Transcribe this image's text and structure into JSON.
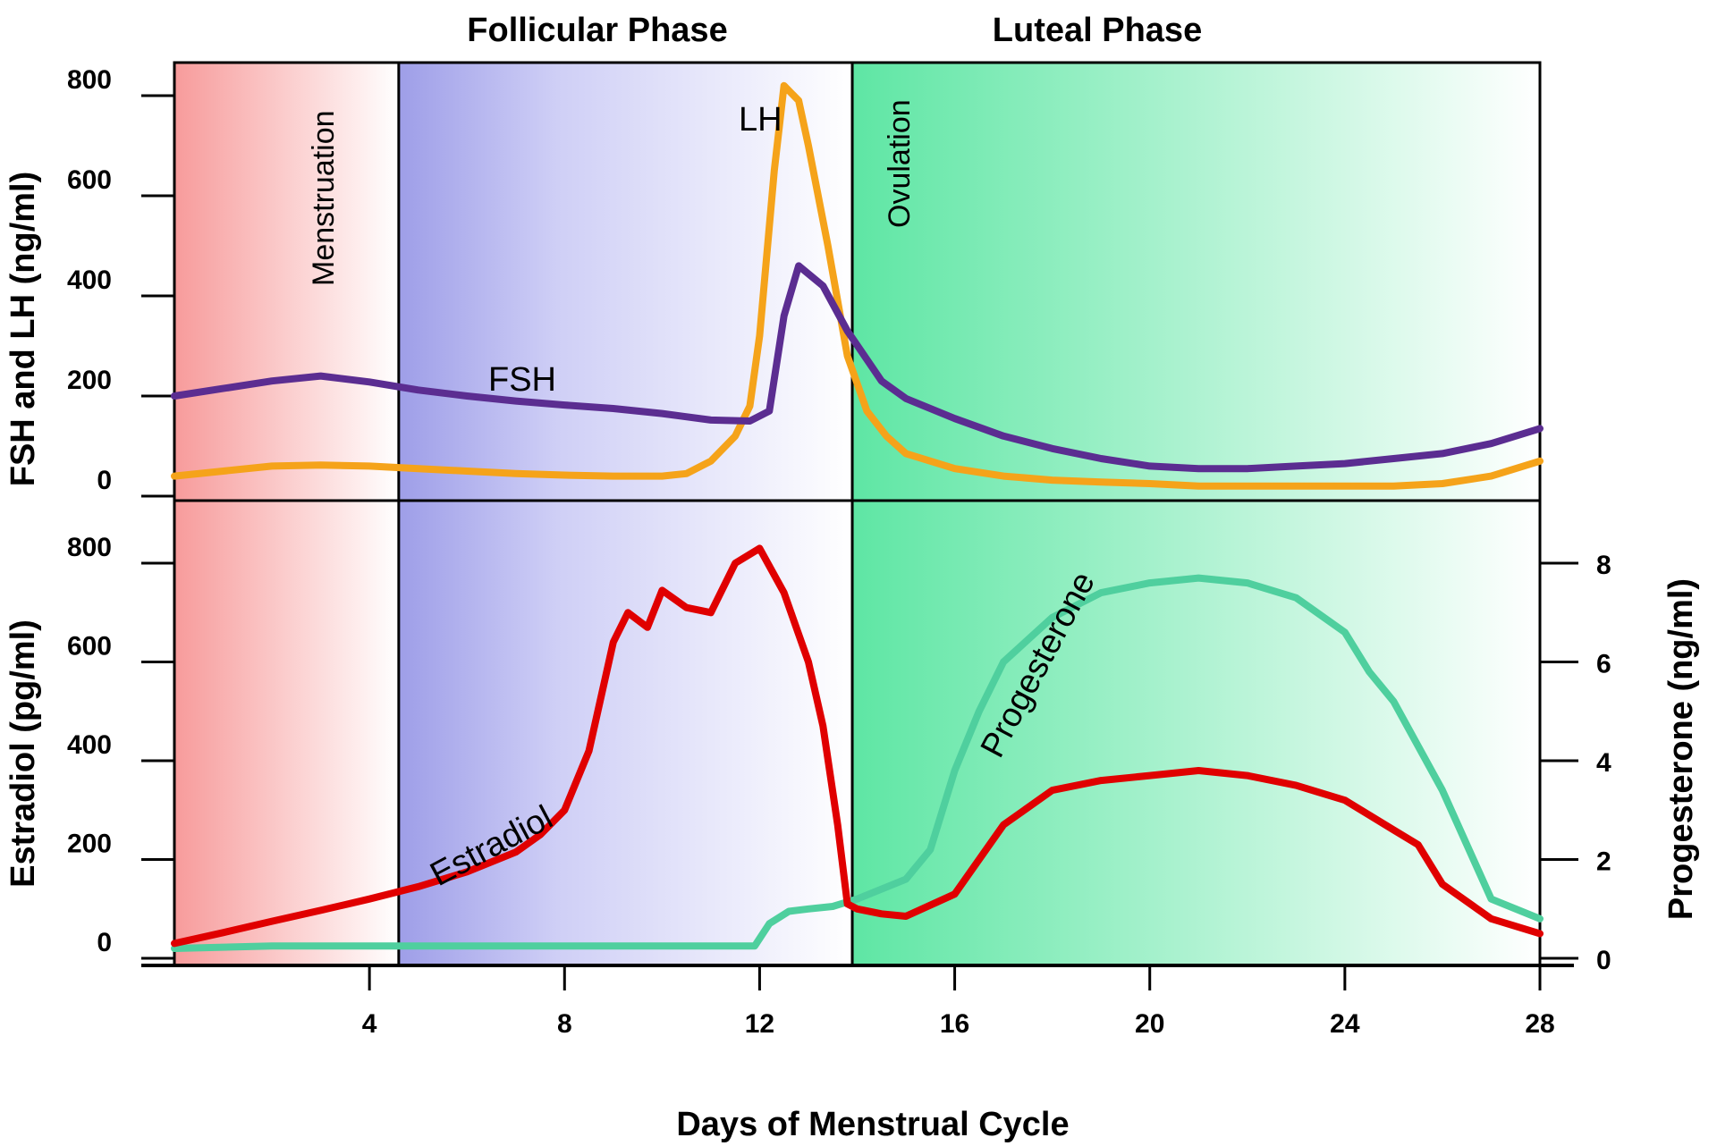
{
  "chart_data": [
    {
      "type": "line",
      "panel": "top",
      "title": "",
      "xlabel": "",
      "ylabel": "FSH and LH (ng/ml)",
      "xlim": [
        0,
        28
      ],
      "ylim": [
        0,
        800
      ],
      "yticks": [
        "0",
        "200",
        "400",
        "600",
        "800"
      ],
      "grid": false,
      "series": [
        {
          "name": "FSH",
          "color": "#5b2d91",
          "x": [
            0,
            1,
            2,
            3,
            4,
            5,
            6,
            7,
            8,
            9,
            10,
            11,
            11.8,
            12.2,
            12.5,
            12.8,
            13.3,
            13.8,
            14.5,
            15,
            16,
            17,
            18,
            19,
            20,
            21,
            22,
            23,
            24,
            25,
            26,
            27,
            28
          ],
          "values": [
            200,
            215,
            230,
            240,
            228,
            212,
            200,
            190,
            182,
            175,
            165,
            152,
            150,
            170,
            360,
            460,
            420,
            330,
            230,
            195,
            155,
            120,
            95,
            75,
            60,
            55,
            55,
            60,
            65,
            75,
            85,
            105,
            135
          ]
        },
        {
          "name": "LH",
          "color": "#f5a31a",
          "x": [
            0,
            1,
            2,
            3,
            4,
            5,
            6,
            7,
            8,
            9,
            10,
            10.5,
            11,
            11.5,
            11.8,
            12,
            12.3,
            12.5,
            12.8,
            13,
            13.4,
            13.8,
            14.2,
            14.6,
            15,
            16,
            17,
            18,
            19,
            20,
            21,
            22,
            23,
            24,
            25,
            26,
            27,
            28
          ],
          "values": [
            40,
            50,
            60,
            62,
            60,
            55,
            50,
            45,
            42,
            40,
            40,
            45,
            70,
            120,
            180,
            320,
            650,
            820,
            790,
            700,
            500,
            280,
            170,
            120,
            85,
            55,
            40,
            32,
            28,
            25,
            20,
            20,
            20,
            20,
            20,
            25,
            40,
            70
          ]
        }
      ]
    },
    {
      "type": "line",
      "panel": "bottom",
      "title": "",
      "xlabel": "Days of Menstrual Cycle",
      "ylabel": "Estradiol (pg/ml)",
      "ylabel_right": "Progesterone (ng/ml)",
      "xlim": [
        0,
        28
      ],
      "ylim": [
        0,
        800
      ],
      "ylim_right": [
        0,
        8
      ],
      "xticks": [
        "4",
        "8",
        "12",
        "16",
        "20",
        "24",
        "28"
      ],
      "yticks": [
        "0",
        "200",
        "400",
        "600",
        "800"
      ],
      "yticks_right": [
        "0",
        "2",
        "4",
        "6",
        "8"
      ],
      "grid": false,
      "series": [
        {
          "name": "Estradiol",
          "axis": "left",
          "color": "#e00000",
          "x": [
            0,
            1,
            2,
            3,
            4,
            5,
            6,
            7,
            7.5,
            8,
            8.5,
            9,
            9.3,
            9.7,
            10,
            10.5,
            11,
            11.5,
            12,
            12.5,
            13,
            13.3,
            13.6,
            13.8,
            14,
            14.5,
            15,
            16,
            17,
            18,
            19,
            20,
            21,
            22,
            23,
            24,
            25,
            25.5,
            26,
            27,
            28
          ],
          "values": [
            30,
            52,
            75,
            97,
            120,
            145,
            175,
            215,
            250,
            300,
            420,
            640,
            700,
            670,
            745,
            710,
            700,
            800,
            830,
            740,
            600,
            470,
            270,
            110,
            100,
            90,
            85,
            130,
            270,
            340,
            360,
            370,
            380,
            370,
            350,
            320,
            260,
            230,
            150,
            80,
            50
          ]
        },
        {
          "name": "Progesterone",
          "axis": "right",
          "color": "#4fcf9e",
          "x": [
            0,
            2,
            4,
            6,
            8,
            10,
            11,
            11.9,
            12.2,
            12.6,
            13,
            13.5,
            14,
            15,
            15.5,
            16,
            16.5,
            17,
            18,
            19,
            20,
            21,
            22,
            23,
            24,
            24.5,
            25,
            26,
            27,
            28
          ],
          "values": [
            0.2,
            0.25,
            0.25,
            0.25,
            0.25,
            0.25,
            0.25,
            0.25,
            0.7,
            0.95,
            1.0,
            1.05,
            1.2,
            1.6,
            2.2,
            3.8,
            5.0,
            6.0,
            6.9,
            7.4,
            7.6,
            7.7,
            7.6,
            7.3,
            6.6,
            5.8,
            5.2,
            3.4,
            1.2,
            0.8
          ]
        }
      ]
    }
  ],
  "annotations": {
    "phase_follicular": "Follicular Phase",
    "phase_luteal": "Luteal Phase",
    "menstruation": "Menstruation",
    "ovulation": "Ovulation",
    "label_lh": "LH",
    "label_fsh": "FSH",
    "label_estradiol": "Estradiol",
    "label_progesterone": "Progesterone"
  },
  "colors": {
    "menstruation": "#f79b9b",
    "follicular": "#9e9ee8",
    "luteal": "#5ee6a4"
  },
  "regions": [
    {
      "name": "menstruation",
      "x_start": 0,
      "x_end": 4.6
    },
    {
      "name": "follicular",
      "x_start": 4.6,
      "x_end": 13.9
    },
    {
      "name": "luteal",
      "x_start": 13.9,
      "x_end": 28
    }
  ],
  "ovulation_day": 13.9
}
